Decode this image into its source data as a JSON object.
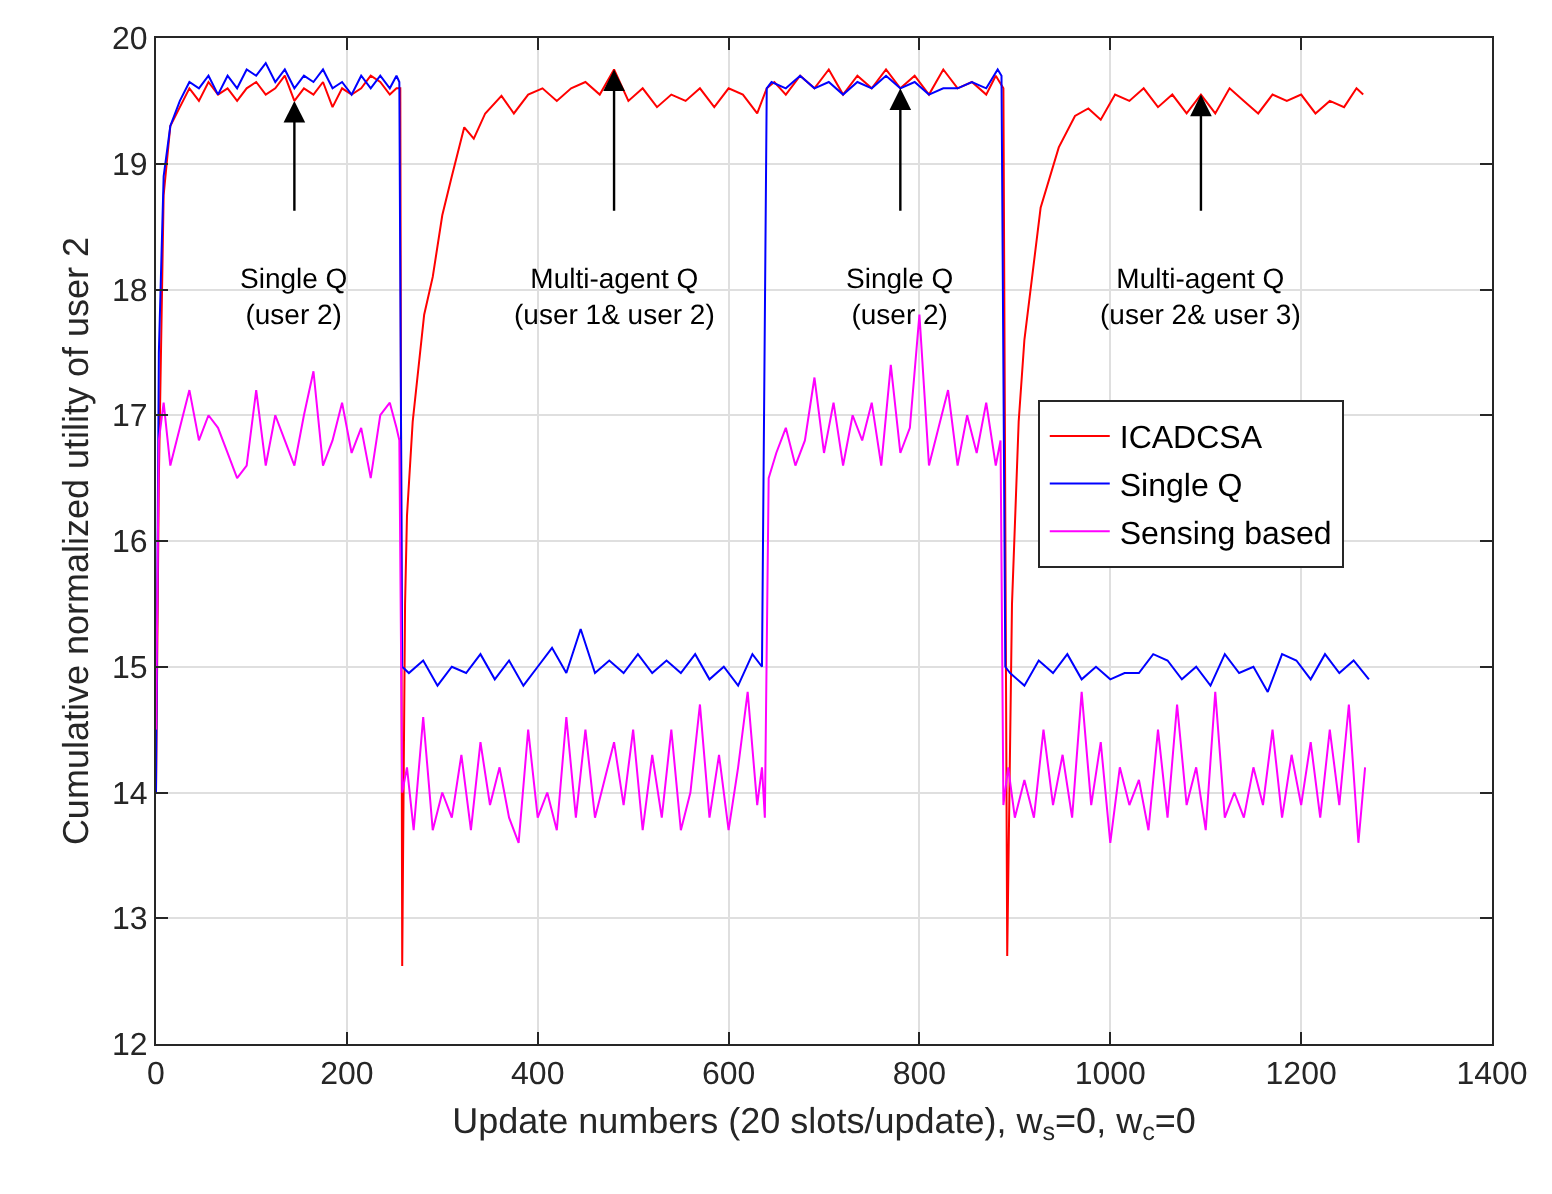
{
  "chart_data": {
    "type": "line",
    "xlabel": "Update numbers (20 slots/update), w$_{s}$=0, w$_{c}$=0",
    "ylabel": "Cumulative normalized utility of user 2",
    "xlim": [
      0,
      1400
    ],
    "xticks": [
      0,
      200,
      400,
      600,
      800,
      1000,
      1200,
      1400
    ],
    "ylim": [
      12,
      20
    ],
    "yticks": [
      12,
      13,
      14,
      15,
      16,
      17,
      18,
      19,
      20
    ],
    "grid": true,
    "legend": "right",
    "marker": "none",
    "line_style": "solid",
    "series": [
      {
        "name": "ICADCSA",
        "color": "#ff0000",
        "x": [
          0,
          3,
          8,
          15,
          25,
          35,
          45,
          55,
          65,
          75,
          85,
          95,
          105,
          115,
          125,
          135,
          145,
          155,
          165,
          175,
          185,
          195,
          205,
          215,
          225,
          235,
          245,
          252,
          256,
          258,
          261,
          263,
          269,
          281,
          290,
          300,
          310,
          323,
          333,
          345,
          362,
          375,
          390,
          405,
          420,
          435,
          450,
          465,
          480,
          495,
          510,
          525,
          540,
          555,
          570,
          585,
          600,
          615,
          630,
          640,
          648,
          660,
          675,
          690,
          705,
          720,
          735,
          750,
          765,
          780,
          795,
          810,
          825,
          840,
          855,
          870,
          880,
          888,
          892,
          897,
          904,
          910,
          927,
          946,
          963,
          977,
          990,
          1005,
          1020,
          1035,
          1050,
          1065,
          1080,
          1095,
          1110,
          1125,
          1140,
          1155,
          1170,
          1185,
          1200,
          1215,
          1230,
          1245,
          1258,
          1265
        ],
        "values": [
          14.0,
          16.5,
          18.75,
          19.3,
          19.45,
          19.6,
          19.5,
          19.65,
          19.55,
          19.6,
          19.5,
          19.6,
          19.65,
          19.55,
          19.6,
          19.7,
          19.5,
          19.6,
          19.55,
          19.65,
          19.45,
          19.6,
          19.55,
          19.6,
          19.7,
          19.65,
          19.55,
          19.6,
          19.6,
          12.62,
          15.5,
          16.2,
          16.95,
          17.8,
          18.1,
          18.59,
          18.9,
          19.29,
          19.2,
          19.4,
          19.54,
          19.4,
          19.55,
          19.6,
          19.5,
          19.6,
          19.65,
          19.55,
          19.75,
          19.5,
          19.6,
          19.45,
          19.55,
          19.5,
          19.6,
          19.45,
          19.6,
          19.55,
          19.4,
          19.6,
          19.65,
          19.55,
          19.7,
          19.6,
          19.75,
          19.55,
          19.7,
          19.6,
          19.75,
          19.6,
          19.7,
          19.55,
          19.75,
          19.6,
          19.65,
          19.55,
          19.7,
          19.6,
          12.7,
          15.5,
          16.95,
          17.6,
          18.65,
          19.13,
          19.38,
          19.44,
          19.35,
          19.55,
          19.5,
          19.6,
          19.45,
          19.55,
          19.4,
          19.55,
          19.4,
          19.6,
          19.5,
          19.4,
          19.55,
          19.5,
          19.55,
          19.4,
          19.5,
          19.45,
          19.6,
          19.55
        ]
      },
      {
        "name": "Single Q",
        "color": "#0000ff",
        "x": [
          0,
          3,
          8,
          15,
          25,
          35,
          45,
          55,
          65,
          75,
          85,
          95,
          105,
          115,
          125,
          135,
          145,
          155,
          165,
          175,
          185,
          195,
          205,
          215,
          225,
          235,
          245,
          252,
          255,
          258,
          265,
          280,
          295,
          310,
          325,
          340,
          355,
          370,
          385,
          400,
          415,
          430,
          445,
          460,
          475,
          490,
          505,
          520,
          535,
          550,
          565,
          580,
          595,
          610,
          625,
          635,
          640,
          645,
          660,
          675,
          690,
          705,
          720,
          735,
          750,
          765,
          780,
          795,
          810,
          825,
          840,
          855,
          870,
          882,
          886,
          890,
          895,
          910,
          925,
          940,
          955,
          970,
          985,
          1000,
          1015,
          1030,
          1045,
          1060,
          1075,
          1090,
          1105,
          1120,
          1135,
          1150,
          1165,
          1180,
          1195,
          1210,
          1225,
          1240,
          1255,
          1271
        ],
        "values": [
          14.0,
          17.5,
          18.9,
          19.3,
          19.5,
          19.65,
          19.6,
          19.7,
          19.55,
          19.7,
          19.6,
          19.75,
          19.7,
          19.8,
          19.65,
          19.75,
          19.6,
          19.7,
          19.65,
          19.75,
          19.6,
          19.65,
          19.55,
          19.7,
          19.6,
          19.7,
          19.6,
          19.7,
          19.65,
          15.0,
          14.95,
          15.05,
          14.85,
          15.0,
          14.95,
          15.1,
          14.9,
          15.05,
          14.85,
          15.0,
          15.15,
          14.95,
          15.3,
          14.95,
          15.05,
          14.95,
          15.1,
          14.95,
          15.05,
          14.95,
          15.1,
          14.9,
          15.0,
          14.85,
          15.1,
          15.0,
          19.6,
          19.65,
          19.6,
          19.7,
          19.6,
          19.65,
          19.55,
          19.65,
          19.6,
          19.7,
          19.6,
          19.65,
          19.55,
          19.6,
          19.6,
          19.65,
          19.6,
          19.75,
          19.7,
          15.0,
          14.95,
          14.85,
          15.05,
          14.95,
          15.1,
          14.9,
          15.0,
          14.9,
          14.95,
          14.95,
          15.1,
          15.05,
          14.9,
          15.0,
          14.85,
          15.1,
          14.95,
          15.0,
          14.8,
          15.1,
          15.05,
          14.9,
          15.1,
          14.95,
          15.05,
          14.9
        ]
      },
      {
        "name": "Sensing based",
        "color": "#ff00ff",
        "x": [
          0,
          3,
          8,
          15,
          25,
          35,
          45,
          55,
          65,
          75,
          85,
          95,
          105,
          115,
          125,
          135,
          145,
          155,
          165,
          175,
          185,
          195,
          205,
          215,
          225,
          235,
          245,
          252,
          255,
          258,
          263,
          270,
          280,
          290,
          300,
          310,
          320,
          330,
          340,
          350,
          360,
          370,
          380,
          390,
          400,
          410,
          420,
          430,
          440,
          450,
          460,
          470,
          480,
          490,
          500,
          510,
          520,
          530,
          540,
          550,
          560,
          570,
          580,
          590,
          600,
          610,
          620,
          630,
          635,
          638,
          642,
          650,
          660,
          670,
          680,
          690,
          700,
          710,
          720,
          730,
          740,
          750,
          760,
          770,
          780,
          790,
          800,
          810,
          820,
          830,
          840,
          850,
          860,
          870,
          880,
          885,
          888,
          893,
          900,
          910,
          920,
          930,
          940,
          950,
          960,
          970,
          980,
          990,
          1000,
          1010,
          1020,
          1030,
          1040,
          1050,
          1060,
          1070,
          1080,
          1090,
          1100,
          1110,
          1120,
          1130,
          1140,
          1150,
          1160,
          1170,
          1180,
          1190,
          1200,
          1210,
          1220,
          1230,
          1240,
          1250,
          1260,
          1267
        ],
        "values": [
          14.5,
          16.8,
          17.1,
          16.6,
          16.9,
          17.2,
          16.8,
          17.0,
          16.9,
          16.7,
          16.5,
          16.6,
          17.2,
          16.6,
          17.0,
          16.8,
          16.6,
          17.0,
          17.35,
          16.6,
          16.8,
          17.1,
          16.7,
          16.9,
          16.5,
          17.0,
          17.1,
          16.9,
          16.8,
          14.0,
          14.2,
          13.7,
          14.6,
          13.7,
          14.0,
          13.8,
          14.3,
          13.7,
          14.4,
          13.9,
          14.2,
          13.8,
          13.6,
          14.5,
          13.8,
          14.0,
          13.7,
          14.6,
          13.8,
          14.5,
          13.8,
          14.1,
          14.4,
          13.9,
          14.5,
          13.7,
          14.3,
          13.8,
          14.5,
          13.7,
          14.0,
          14.7,
          13.8,
          14.3,
          13.7,
          14.2,
          14.8,
          13.9,
          14.2,
          13.8,
          16.5,
          16.7,
          16.9,
          16.6,
          16.8,
          17.3,
          16.7,
          17.1,
          16.6,
          17.0,
          16.8,
          17.1,
          16.6,
          17.4,
          16.7,
          16.9,
          17.8,
          16.6,
          16.9,
          17.2,
          16.6,
          17.0,
          16.7,
          17.1,
          16.6,
          16.8,
          13.9,
          14.2,
          13.8,
          14.1,
          13.8,
          14.5,
          13.9,
          14.3,
          13.8,
          14.8,
          13.9,
          14.4,
          13.6,
          14.2,
          13.9,
          14.1,
          13.7,
          14.5,
          13.8,
          14.7,
          13.9,
          14.2,
          13.7,
          14.8,
          13.8,
          14.0,
          13.8,
          14.2,
          13.9,
          14.5,
          13.8,
          14.3,
          13.9,
          14.4,
          13.8,
          14.5,
          13.9,
          14.7,
          13.6,
          14.2
        ]
      }
    ],
    "annotations": [
      {
        "text": "Single Q\n(user 2)",
        "x": 145,
        "y": 19.5
      },
      {
        "text": "Multi-agent Q\n(user 1& user 2)",
        "x": 480,
        "y": 19.75
      },
      {
        "text": "Single Q\n(user 2)",
        "x": 780,
        "y": 19.6
      },
      {
        "text": "Multi-agent Q\n(user 2& user 3)",
        "x": 1095,
        "y": 19.55
      }
    ]
  }
}
